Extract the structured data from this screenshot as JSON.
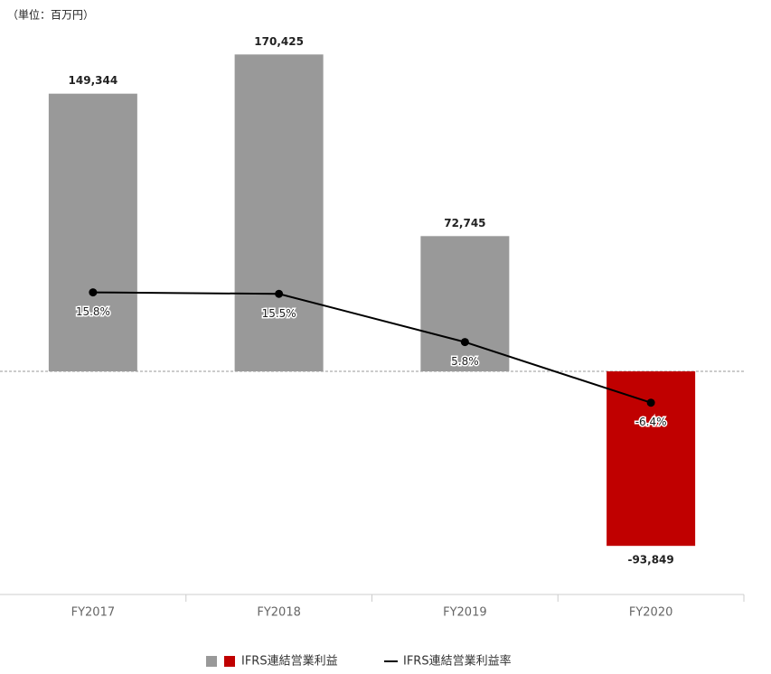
{
  "chart_data": {
    "type": "bar-line",
    "unit_label": "（単位：百万円）",
    "categories": [
      "FY2017",
      "FY2018",
      "FY2019",
      "FY2020"
    ],
    "ylim": [
      -120000,
      190000
    ],
    "y2lim": [
      -45,
      71
    ],
    "series": [
      {
        "name": "IFRS連結営業利益",
        "type": "bar",
        "color": "#999999",
        "negative_color": "#c00000",
        "values": [
          149344,
          170425,
          72745,
          -93849
        ],
        "value_labels": [
          "149,344",
          "170,425",
          "72,745",
          "-93,849"
        ]
      },
      {
        "name": "IFRS連結営業利益率",
        "type": "line",
        "axis": "y2",
        "color": "#000000",
        "values": [
          15.8,
          15.5,
          5.8,
          -6.4
        ],
        "value_labels": [
          "15.8%",
          "15.5%",
          "5.8%",
          "-6.4%"
        ]
      }
    ]
  }
}
